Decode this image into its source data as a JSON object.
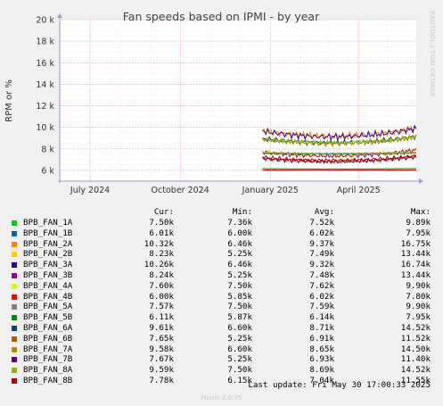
{
  "chart_data": {
    "type": "line",
    "title": "Fan speeds based on IPMI - by year",
    "ylabel": "RPM or %",
    "xlabel": "",
    "ylim": [
      5000,
      20000
    ],
    "yticks": [
      {
        "value": 6000,
        "label": "6 k"
      },
      {
        "value": 8000,
        "label": "8 k"
      },
      {
        "value": 10000,
        "label": "10 k"
      },
      {
        "value": 12000,
        "label": "12 k"
      },
      {
        "value": 14000,
        "label": "14 k"
      },
      {
        "value": 16000,
        "label": "16 k"
      },
      {
        "value": 18000,
        "label": "18 k"
      },
      {
        "value": 20000,
        "label": "20 k"
      }
    ],
    "xlim": [
      "2024-05-31",
      "2025-05-30"
    ],
    "xticks": [
      {
        "date": "2024-07-01",
        "label": "July 2024"
      },
      {
        "date": "2024-10-01",
        "label": "October 2024"
      },
      {
        "date": "2025-01-01",
        "label": "January 2025"
      },
      {
        "date": "2025-04-01",
        "label": "April 2025"
      }
    ],
    "data_start": "2024-12-24",
    "grid": true,
    "series": [
      {
        "name": "BPB_FAN_1A",
        "color": "#00cc00",
        "cur": "7.50k",
        "min": "7.36k",
        "avg": "7.52k",
        "max": "9.89k",
        "level": 7520,
        "wiggle": 100
      },
      {
        "name": "BPB_FAN_1B",
        "color": "#0066b3",
        "cur": "6.01k",
        "min": "6.00k",
        "avg": "6.02k",
        "max": "7.95k",
        "level": 6020,
        "wiggle": 20
      },
      {
        "name": "BPB_FAN_2A",
        "color": "#ff8000",
        "cur": "10.32k",
        "min": "6.46k",
        "avg": "9.37k",
        "max": "16.75k",
        "level": 9370,
        "wiggle": 700
      },
      {
        "name": "BPB_FAN_2B",
        "color": "#ffcc00",
        "cur": "8.23k",
        "min": "5.25k",
        "avg": "7.49k",
        "max": "13.44k",
        "level": 7490,
        "wiggle": 500
      },
      {
        "name": "BPB_FAN_3A",
        "color": "#330099",
        "cur": "10.26k",
        "min": "6.46k",
        "avg": "9.32k",
        "max": "16.74k",
        "level": 9320,
        "wiggle": 700
      },
      {
        "name": "BPB_FAN_3B",
        "color": "#990099",
        "cur": "8.24k",
        "min": "5.25k",
        "avg": "7.48k",
        "max": "13.44k",
        "level": 7480,
        "wiggle": 500
      },
      {
        "name": "BPB_FAN_4A",
        "color": "#ccff00",
        "cur": "7.60k",
        "min": "7.50k",
        "avg": "7.62k",
        "max": "9.90k",
        "level": 7620,
        "wiggle": 80
      },
      {
        "name": "BPB_FAN_4B",
        "color": "#ff0000",
        "cur": "6.00k",
        "min": "5.85k",
        "avg": "6.02k",
        "max": "7.80k",
        "level": 6020,
        "wiggle": 20
      },
      {
        "name": "BPB_FAN_5A",
        "color": "#808080",
        "cur": "7.57k",
        "min": "7.50k",
        "avg": "7.59k",
        "max": "9.90k",
        "level": 7590,
        "wiggle": 80
      },
      {
        "name": "BPB_FAN_5B",
        "color": "#008f00",
        "cur": "6.11k",
        "min": "5.87k",
        "avg": "6.14k",
        "max": "7.95k",
        "level": 6140,
        "wiggle": 40
      },
      {
        "name": "BPB_FAN_6A",
        "color": "#00487d",
        "cur": "9.61k",
        "min": "6.60k",
        "avg": "8.71k",
        "max": "14.52k",
        "level": 8710,
        "wiggle": 550
      },
      {
        "name": "BPB_FAN_6B",
        "color": "#b35a00",
        "cur": "7.65k",
        "min": "5.25k",
        "avg": "6.91k",
        "max": "11.52k",
        "level": 6910,
        "wiggle": 400
      },
      {
        "name": "BPB_FAN_7A",
        "color": "#b38f00",
        "cur": "9.58k",
        "min": "6.60k",
        "avg": "8.65k",
        "max": "14.50k",
        "level": 8650,
        "wiggle": 550
      },
      {
        "name": "BPB_FAN_7B",
        "color": "#6b006b",
        "cur": "7.67k",
        "min": "5.25k",
        "avg": "6.93k",
        "max": "11.40k",
        "level": 6930,
        "wiggle": 400
      },
      {
        "name": "BPB_FAN_8A",
        "color": "#8fb300",
        "cur": "9.59k",
        "min": "7.50k",
        "avg": "8.69k",
        "max": "14.52k",
        "level": 8690,
        "wiggle": 500
      },
      {
        "name": "BPB_FAN_8B",
        "color": "#b30000",
        "cur": "7.78k",
        "min": "6.15k",
        "avg": "7.04k",
        "max": "11.55k",
        "level": 7040,
        "wiggle": 400
      }
    ]
  },
  "legend": {
    "cur_label": "Cur:",
    "min_label": "Min:",
    "avg_label": "Avg:",
    "max_label": "Max:"
  },
  "side_label": "RRDTOOL / TOBI OETIKER",
  "last_update": "Last update: Fri May 30 17:00:33 2025",
  "generator": "Munin 2.0.75"
}
